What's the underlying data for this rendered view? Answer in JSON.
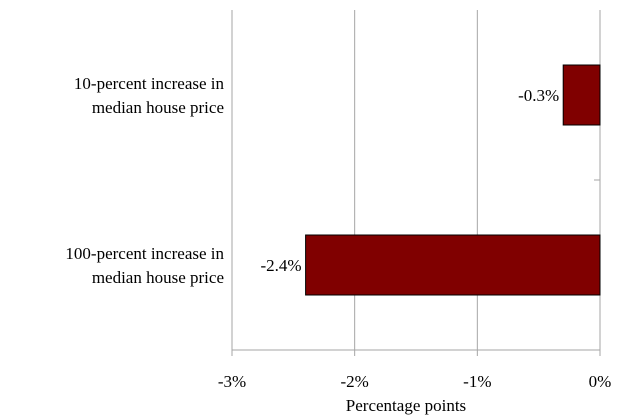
{
  "chart_data": {
    "type": "bar",
    "orientation": "horizontal",
    "categories": [
      [
        "10-percent increase in",
        "median house price"
      ],
      [
        "100-percent increase in",
        "median house price"
      ]
    ],
    "values": [
      -0.3,
      -2.4
    ],
    "data_labels": [
      "-0.3%",
      "-2.4%"
    ],
    "xlabel": "Percentage points",
    "ylabel": "",
    "xlim": [
      -3,
      0
    ],
    "xticks": [
      -3,
      -2,
      -1,
      0
    ],
    "xtick_labels": [
      "-3%",
      "-2%",
      "-1%",
      "0%"
    ],
    "grid": "vertical",
    "legend": "none",
    "colors": {
      "bar": "#800000",
      "bar_border": "#000000",
      "grid": "#a6a6a6",
      "frame": "#a6a6a6"
    }
  }
}
